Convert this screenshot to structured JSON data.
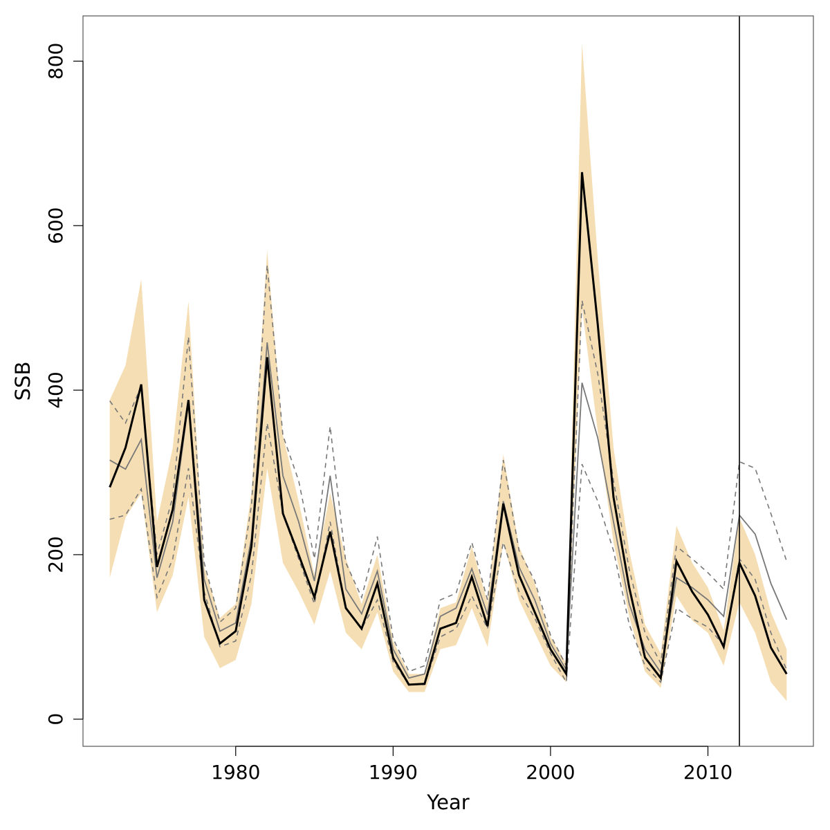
{
  "chart_data": {
    "type": "line",
    "title": "",
    "xlabel": "Year",
    "ylabel": "SSB",
    "xlim": [
      1970.3,
      2016.7
    ],
    "ylim": [
      -33,
      855
    ],
    "xticks": [
      1980,
      1990,
      2000,
      2010
    ],
    "yticks": [
      0,
      200,
      400,
      600,
      800
    ],
    "grid": false,
    "legend": "none",
    "vline_x": 2012,
    "x": [
      1972,
      1973,
      1974,
      1975,
      1976,
      1977,
      1978,
      1979,
      1980,
      1981,
      1982,
      1983,
      1984,
      1985,
      1986,
      1987,
      1988,
      1989,
      1990,
      1991,
      1992,
      1993,
      1994,
      1995,
      1996,
      1997,
      1998,
      1999,
      2000,
      2001,
      2002,
      2003,
      2004,
      2005,
      2006,
      2007,
      2008,
      2009,
      2010,
      2011,
      2012,
      2013,
      2014,
      2015
    ],
    "colors": {
      "band": "#f5deb3",
      "main_line": "#000000",
      "grey_line": "#777777",
      "dashed_line": "#777777",
      "vline": "#000000",
      "frame": "#555555"
    },
    "series": [
      {
        "role": "band_upper",
        "values": [
          388,
          430,
          535,
          240,
          330,
          508,
          185,
          123,
          140,
          275,
          570,
          345,
          265,
          175,
          275,
          195,
          140,
          200,
          95,
          55,
          55,
          135,
          142,
          210,
          142,
          322,
          210,
          165,
          100,
          68,
          822,
          560,
          330,
          205,
          115,
          80,
          235,
          190,
          160,
          108,
          245,
          200,
          130,
          85
        ]
      },
      {
        "role": "band_lower",
        "values": [
          172,
          245,
          275,
          130,
          175,
          270,
          100,
          62,
          72,
          140,
          305,
          190,
          155,
          115,
          180,
          105,
          85,
          130,
          58,
          33,
          33,
          85,
          90,
          135,
          88,
          215,
          145,
          105,
          65,
          45,
          500,
          350,
          215,
          125,
          58,
          38,
          150,
          120,
          105,
          65,
          142,
          105,
          45,
          22
        ]
      },
      {
        "role": "main",
        "values": [
          282,
          330,
          407,
          185,
          255,
          388,
          145,
          92,
          107,
          210,
          440,
          250,
          200,
          148,
          228,
          135,
          110,
          165,
          75,
          42,
          43,
          110,
          117,
          173,
          113,
          262,
          175,
          130,
          85,
          55,
          665,
          480,
          270,
          160,
          75,
          50,
          192,
          155,
          127,
          88,
          190,
          150,
          87,
          55
        ]
      },
      {
        "role": "grey",
        "values": [
          315,
          304,
          340,
          172,
          240,
          385,
          170,
          107,
          117,
          220,
          458,
          296,
          240,
          168,
          296,
          158,
          128,
          180,
          85,
          50,
          55,
          125,
          135,
          183,
          127,
          265,
          185,
          145,
          92,
          60,
          409,
          342,
          240,
          140,
          85,
          57,
          172,
          160,
          145,
          125,
          248,
          225,
          165,
          121
        ]
      },
      {
        "role": "grey_upper",
        "values": [
          387,
          360,
          405,
          200,
          270,
          465,
          190,
          118,
          135,
          260,
          552,
          345,
          290,
          195,
          356,
          190,
          148,
          222,
          98,
          58,
          65,
          145,
          153,
          215,
          145,
          315,
          205,
          168,
          102,
          65,
          509,
          420,
          290,
          182,
          105,
          68,
          210,
          195,
          178,
          158,
          313,
          305,
          250,
          192
        ]
      },
      {
        "role": "grey_lower",
        "values": [
          243,
          248,
          280,
          148,
          195,
          305,
          155,
          88,
          95,
          175,
          360,
          250,
          195,
          140,
          240,
          135,
          110,
          145,
          70,
          42,
          42,
          100,
          110,
          150,
          110,
          215,
          155,
          123,
          80,
          45,
          310,
          265,
          205,
          115,
          65,
          45,
          135,
          122,
          112,
          90,
          195,
          170,
          105,
          60
        ]
      }
    ]
  }
}
